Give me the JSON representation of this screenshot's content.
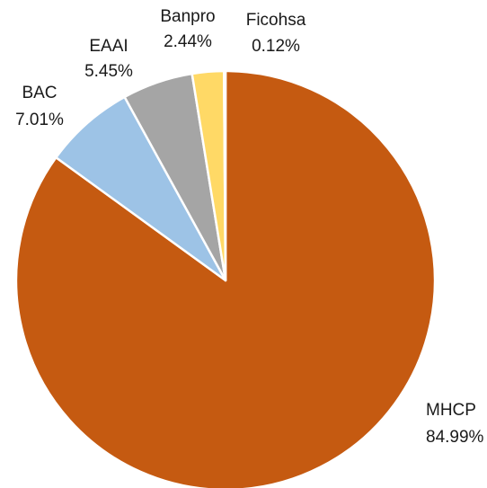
{
  "chart_data": {
    "type": "pie",
    "title": "",
    "slices": [
      {
        "name": "MHCP",
        "value": 84.99,
        "label": "84.99%",
        "color": "#C55A11"
      },
      {
        "name": "BAC",
        "value": 7.01,
        "label": "7.01%",
        "color": "#9DC3E6"
      },
      {
        "name": "EAAI",
        "value": 5.45,
        "label": "5.45%",
        "color": "#A5A5A5"
      },
      {
        "name": "Banpro",
        "value": 2.44,
        "label": "2.44%",
        "color": "#FFD966"
      },
      {
        "name": "Ficohsa",
        "value": 0.12,
        "label": "0.12%",
        "color": "#5B9BD5"
      }
    ],
    "start": "12 o'clock",
    "direction": "clockwise",
    "legend": "none",
    "data_labels": "outside, category name and percentage"
  }
}
